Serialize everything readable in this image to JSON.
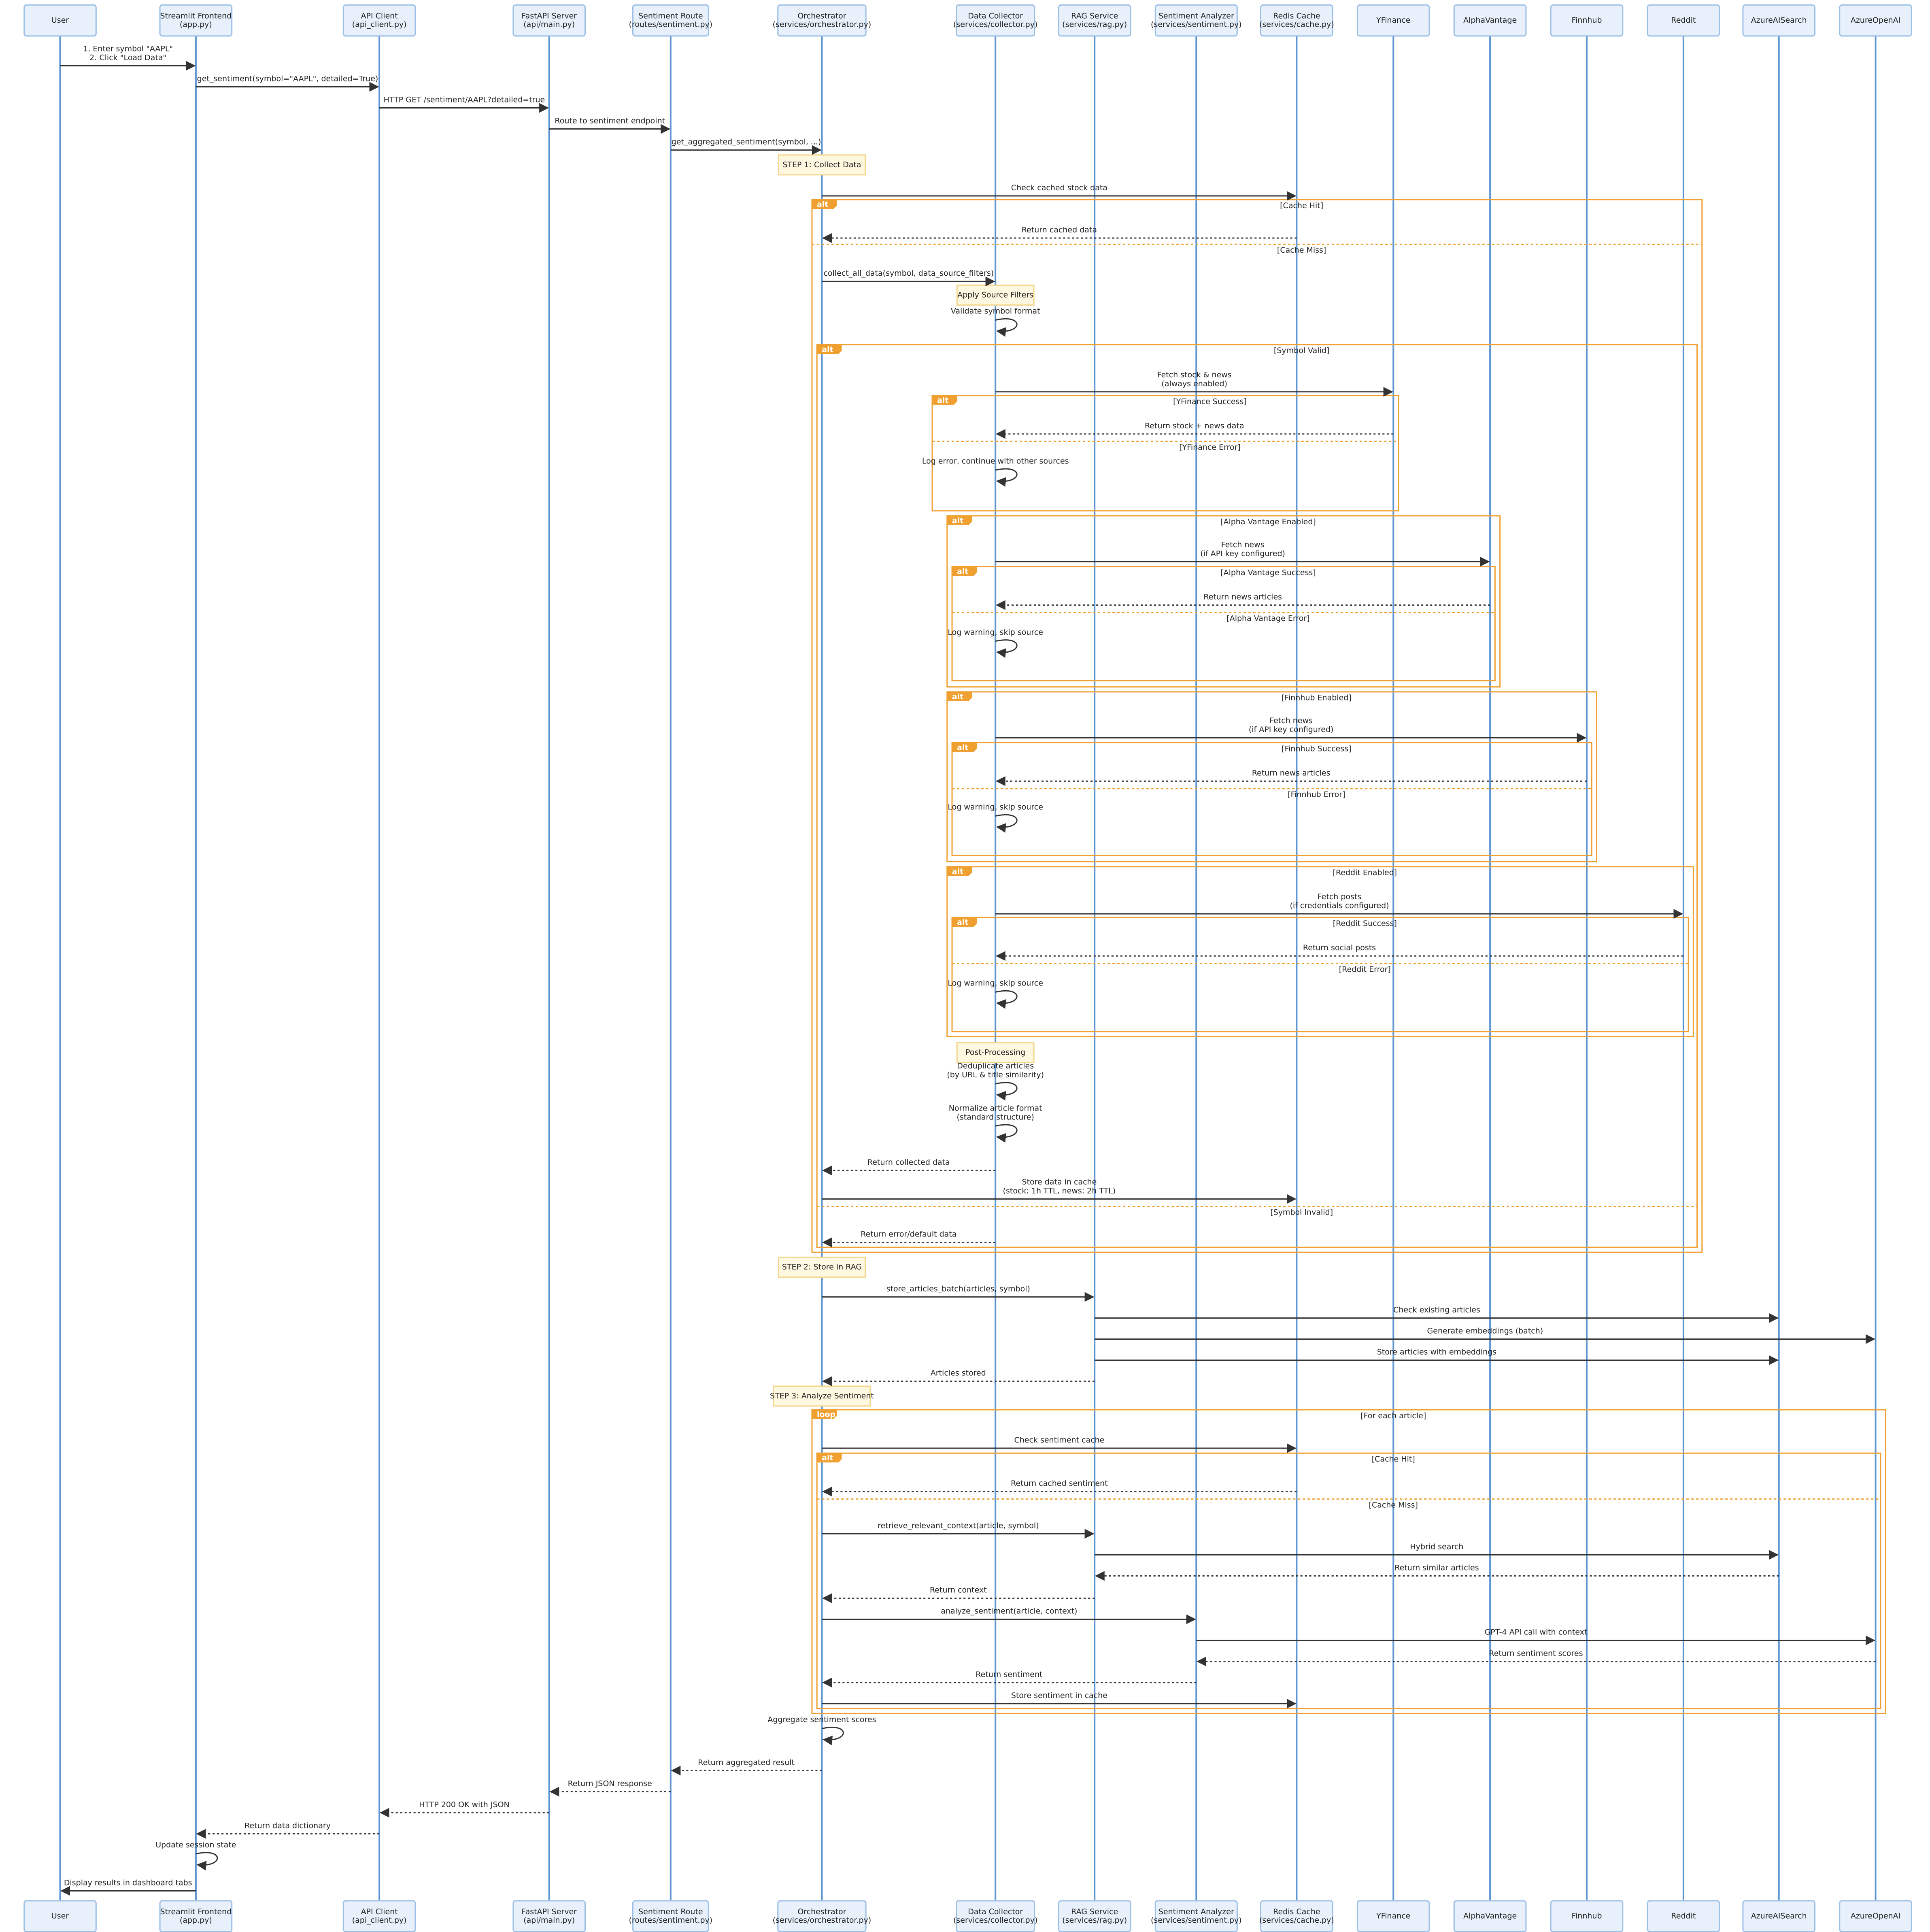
{
  "colors": {
    "actor_fill": "#e8f1fb",
    "actor_border": "#9cbfe6",
    "lifeline": "#5d95d2",
    "message": "#333333",
    "frame_border": "#f0a030",
    "note_fill": "#fff8e0",
    "note_border": "#f4d68c"
  },
  "participants": [
    {
      "id": "user",
      "lines": [
        "User"
      ]
    },
    {
      "id": "streamlit",
      "lines": [
        "Streamlit Frontend",
        "(app.py)"
      ]
    },
    {
      "id": "apiclient",
      "lines": [
        "API Client",
        "(api_client.py)"
      ]
    },
    {
      "id": "fastapi",
      "lines": [
        "FastAPI Server",
        "(api/main.py)"
      ]
    },
    {
      "id": "route",
      "lines": [
        "Sentiment Route",
        "(routes/sentiment.py)"
      ]
    },
    {
      "id": "orch",
      "lines": [
        "Orchestrator",
        "(services/orchestrator.py)"
      ]
    },
    {
      "id": "collector",
      "lines": [
        "Data Collector",
        "(services/collector.py)"
      ]
    },
    {
      "id": "rag",
      "lines": [
        "RAG Service",
        "(services/rag.py)"
      ]
    },
    {
      "id": "analyzer",
      "lines": [
        "Sentiment Analyzer",
        "(services/sentiment.py)"
      ]
    },
    {
      "id": "redis",
      "lines": [
        "Redis Cache",
        "(services/cache.py)"
      ]
    },
    {
      "id": "yfinance",
      "lines": [
        "YFinance"
      ]
    },
    {
      "id": "alphavantage",
      "lines": [
        "AlphaVantage"
      ]
    },
    {
      "id": "finnhub",
      "lines": [
        "Finnhub"
      ]
    },
    {
      "id": "reddit",
      "lines": [
        "Reddit"
      ]
    },
    {
      "id": "azuresearch",
      "lines": [
        "AzureAISearch"
      ]
    },
    {
      "id": "azureopenai",
      "lines": [
        "AzureOpenAI"
      ]
    }
  ],
  "messages": [
    {
      "from": "user",
      "to": "streamlit",
      "lines": [
        "1. Enter symbol \"AAPL\"",
        "2. Click \"Load Data\""
      ],
      "dashed": false
    },
    {
      "from": "streamlit",
      "to": "apiclient",
      "lines": [
        "get_sentiment(symbol=\"AAPL\", detailed=True)"
      ],
      "dashed": false
    },
    {
      "from": "apiclient",
      "to": "fastapi",
      "lines": [
        "HTTP GET /sentiment/AAPL?detailed=true"
      ],
      "dashed": false
    },
    {
      "from": "fastapi",
      "to": "route",
      "lines": [
        "Route to sentiment endpoint"
      ],
      "dashed": false
    },
    {
      "from": "route",
      "to": "orch",
      "lines": [
        "get_aggregated_sentiment(symbol, ...)"
      ],
      "dashed": false
    },
    {
      "from": "orch",
      "to": "redis",
      "lines": [
        "Check cached stock data"
      ],
      "dashed": false
    },
    {
      "from": "redis",
      "to": "orch",
      "lines": [
        "Return cached data"
      ],
      "dashed": true
    },
    {
      "from": "orch",
      "to": "collector",
      "lines": [
        "collect_all_data(symbol, data_source_filters)"
      ],
      "dashed": false
    },
    {
      "from": "collector",
      "to": "collector",
      "lines": [
        "Validate symbol format"
      ],
      "dashed": false
    },
    {
      "from": "collector",
      "to": "yfinance",
      "lines": [
        "Fetch stock & news",
        "(always enabled)"
      ],
      "dashed": false
    },
    {
      "from": "yfinance",
      "to": "collector",
      "lines": [
        "Return stock + news data"
      ],
      "dashed": true
    },
    {
      "from": "collector",
      "to": "collector",
      "lines": [
        "Log error, continue with other sources"
      ],
      "dashed": false
    },
    {
      "from": "collector",
      "to": "alphavantage",
      "lines": [
        "Fetch news",
        "(if API key configured)"
      ],
      "dashed": false
    },
    {
      "from": "alphavantage",
      "to": "collector",
      "lines": [
        "Return news articles"
      ],
      "dashed": true
    },
    {
      "from": "collector",
      "to": "collector",
      "lines": [
        "Log warning, skip source"
      ],
      "dashed": false
    },
    {
      "from": "collector",
      "to": "finnhub",
      "lines": [
        "Fetch news",
        "(if API key configured)"
      ],
      "dashed": false
    },
    {
      "from": "finnhub",
      "to": "collector",
      "lines": [
        "Return news articles"
      ],
      "dashed": true
    },
    {
      "from": "collector",
      "to": "collector",
      "lines": [
        "Log warning, skip source"
      ],
      "dashed": false
    },
    {
      "from": "collector",
      "to": "reddit",
      "lines": [
        "Fetch posts",
        "(if credentials configured)"
      ],
      "dashed": false
    },
    {
      "from": "reddit",
      "to": "collector",
      "lines": [
        "Return social posts"
      ],
      "dashed": true
    },
    {
      "from": "collector",
      "to": "collector",
      "lines": [
        "Log warning, skip source"
      ],
      "dashed": false
    },
    {
      "from": "collector",
      "to": "collector",
      "lines": [
        "Deduplicate articles",
        "(by URL & title similarity)"
      ],
      "dashed": false
    },
    {
      "from": "collector",
      "to": "collector",
      "lines": [
        "Normalize article format",
        "(standard structure)"
      ],
      "dashed": false
    },
    {
      "from": "collector",
      "to": "orch",
      "lines": [
        "Return collected data"
      ],
      "dashed": true
    },
    {
      "from": "orch",
      "to": "redis",
      "lines": [
        "Store data in cache",
        "(stock: 1h TTL, news: 2h TTL)"
      ],
      "dashed": false
    },
    {
      "from": "collector",
      "to": "orch",
      "lines": [
        "Return error/default data"
      ],
      "dashed": true
    },
    {
      "from": "orch",
      "to": "rag",
      "lines": [
        "store_articles_batch(articles, symbol)"
      ],
      "dashed": false
    },
    {
      "from": "rag",
      "to": "azuresearch",
      "lines": [
        "Check existing articles"
      ],
      "dashed": false
    },
    {
      "from": "rag",
      "to": "azureopenai",
      "lines": [
        "Generate embeddings (batch)"
      ],
      "dashed": false
    },
    {
      "from": "rag",
      "to": "azuresearch",
      "lines": [
        "Store articles with embeddings"
      ],
      "dashed": false
    },
    {
      "from": "rag",
      "to": "orch",
      "lines": [
        "Articles stored"
      ],
      "dashed": true
    },
    {
      "from": "orch",
      "to": "redis",
      "lines": [
        "Check sentiment cache"
      ],
      "dashed": false
    },
    {
      "from": "redis",
      "to": "orch",
      "lines": [
        "Return cached sentiment"
      ],
      "dashed": true
    },
    {
      "from": "orch",
      "to": "rag",
      "lines": [
        "retrieve_relevant_context(article, symbol)"
      ],
      "dashed": false
    },
    {
      "from": "rag",
      "to": "azuresearch",
      "lines": [
        "Hybrid search"
      ],
      "dashed": false
    },
    {
      "from": "azuresearch",
      "to": "rag",
      "lines": [
        "Return similar articles"
      ],
      "dashed": true
    },
    {
      "from": "rag",
      "to": "orch",
      "lines": [
        "Return context"
      ],
      "dashed": true
    },
    {
      "from": "orch",
      "to": "analyzer",
      "lines": [
        "analyze_sentiment(article, context)"
      ],
      "dashed": false
    },
    {
      "from": "analyzer",
      "to": "azureopenai",
      "lines": [
        "GPT-4 API call with context"
      ],
      "dashed": false
    },
    {
      "from": "azureopenai",
      "to": "analyzer",
      "lines": [
        "Return sentiment scores"
      ],
      "dashed": true
    },
    {
      "from": "analyzer",
      "to": "orch",
      "lines": [
        "Return sentiment"
      ],
      "dashed": true
    },
    {
      "from": "orch",
      "to": "redis",
      "lines": [
        "Store sentiment in cache"
      ],
      "dashed": false
    },
    {
      "from": "orch",
      "to": "orch",
      "lines": [
        "Aggregate sentiment scores"
      ],
      "dashed": false
    },
    {
      "from": "orch",
      "to": "route",
      "lines": [
        "Return aggregated result"
      ],
      "dashed": true
    },
    {
      "from": "route",
      "to": "fastapi",
      "lines": [
        "Return JSON response"
      ],
      "dashed": true
    },
    {
      "from": "fastapi",
      "to": "apiclient",
      "lines": [
        "HTTP 200 OK with JSON"
      ],
      "dashed": true
    },
    {
      "from": "apiclient",
      "to": "streamlit",
      "lines": [
        "Return data dictionary"
      ],
      "dashed": true
    },
    {
      "from": "streamlit",
      "to": "streamlit",
      "lines": [
        "Update session state"
      ],
      "dashed": false
    },
    {
      "from": "streamlit",
      "to": "user",
      "lines": [
        "Display results in dashboard tabs"
      ],
      "dashed": false
    }
  ],
  "notes": [
    {
      "over": "orch",
      "text": "STEP 1: Collect Data"
    },
    {
      "over": "collector",
      "text": "Apply Source Filters"
    },
    {
      "over": "collector",
      "text": "Post-Processing"
    },
    {
      "over": "orch",
      "text": "STEP 2: Store in RAG"
    },
    {
      "over": "orch",
      "text": "STEP 3: Analyze Sentiment"
    }
  ],
  "frames": [
    {
      "keyword": "alt",
      "sections": [
        "[Cache Hit]",
        "[Cache Miss]"
      ]
    },
    {
      "keyword": "alt",
      "sections": [
        "[Symbol Valid]",
        "[Symbol Invalid]"
      ]
    },
    {
      "keyword": "alt",
      "sections": [
        "[YFinance Success]",
        "[YFinance Error]"
      ]
    },
    {
      "keyword": "alt",
      "sections": [
        "[Alpha Vantage Enabled]"
      ]
    },
    {
      "keyword": "alt",
      "sections": [
        "[Alpha Vantage Success]",
        "[Alpha Vantage Error]"
      ]
    },
    {
      "keyword": "alt",
      "sections": [
        "[Finnhub Enabled]"
      ]
    },
    {
      "keyword": "alt",
      "sections": [
        "[Finnhub Success]",
        "[Finnhub Error]"
      ]
    },
    {
      "keyword": "alt",
      "sections": [
        "[Reddit Enabled]"
      ]
    },
    {
      "keyword": "alt",
      "sections": [
        "[Reddit Success]",
        "[Reddit Error]"
      ]
    },
    {
      "keyword": "loop",
      "sections": [
        "[For each article]"
      ]
    },
    {
      "keyword": "alt",
      "sections": [
        "[Cache Hit]",
        "[Cache Miss]"
      ]
    }
  ]
}
